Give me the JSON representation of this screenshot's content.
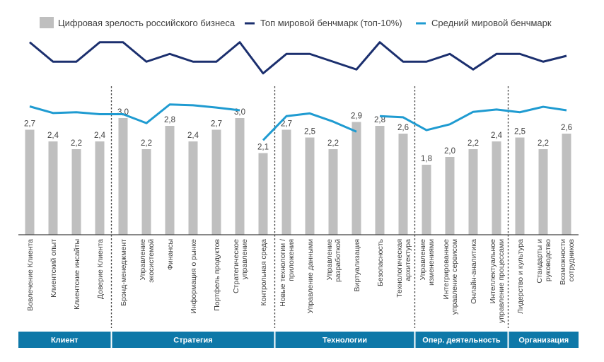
{
  "chart_data": {
    "type": "bar",
    "title": "",
    "xlabel": "",
    "ylabel": "",
    "ylim": [
      0,
      6
    ],
    "grid": false,
    "legend": {
      "placement": "top",
      "entries": [
        {
          "name": "Цифровая зрелость российского бизнеса",
          "kind": "bar",
          "color": "#bfbfbf"
        },
        {
          "name": "Топ мировой бенчмарк (топ-10%)",
          "kind": "line",
          "color": "#1b2f6e"
        },
        {
          "name": "Средний мировой бенчмарк",
          "kind": "line",
          "color": "#1f9bd1"
        }
      ]
    },
    "categories": [
      [
        "Вовлечение Клиента"
      ],
      [
        "Клиентский опыт"
      ],
      [
        "Клиентские инсайты"
      ],
      [
        "Доверие Клиента"
      ],
      [
        "Брэнд-менеджмент"
      ],
      [
        "Управление",
        "экосистемой"
      ],
      [
        "Финансы"
      ],
      [
        "Информация о рынке"
      ],
      [
        "Портфель продуктов"
      ],
      [
        "Стратегическое",
        "управление"
      ],
      [
        "Контрольная среда"
      ],
      [
        "Новые технологии /",
        "приложения"
      ],
      [
        "Управление данными"
      ],
      [
        "Управление",
        "разработкой"
      ],
      [
        "Виртуализация"
      ],
      [
        "Безопасность"
      ],
      [
        "Технологическая",
        "архитектура"
      ],
      [
        "Управление",
        "изменениями"
      ],
      [
        "Интегрированное",
        "управление сервисом"
      ],
      [
        "Онлайн-аналитика"
      ],
      [
        "Интеллектуальное",
        "управление процессами"
      ],
      [
        "Лидерство и культура"
      ],
      [
        "Стандарты и",
        "руководство"
      ],
      [
        "Возможности",
        "сотрудников"
      ]
    ],
    "series": [
      {
        "name": "Цифровая зрелость российского бизнеса",
        "type": "bar",
        "color": "#bfbfbf",
        "values": [
          2.7,
          2.4,
          2.2,
          2.4,
          3.0,
          2.2,
          2.8,
          2.4,
          2.7,
          3.0,
          2.1,
          2.7,
          2.5,
          2.2,
          2.9,
          2.8,
          2.6,
          1.8,
          2.0,
          2.2,
          2.4,
          2.5,
          2.2,
          2.6
        ],
        "labels": [
          "2,7",
          "2,4",
          "2,2",
          "2,4",
          "3,0",
          "2,2",
          "2,8",
          "2,4",
          "2,7",
          "3,0",
          "2,1",
          "2,7",
          "2,5",
          "2,2",
          "2,9",
          "2,8",
          "2,6",
          "1,8",
          "2,0",
          "2,2",
          "2,4",
          "2,5",
          "2,2",
          "2,6"
        ]
      },
      {
        "name": "Топ мировой бенчмарк (топ-10%)",
        "type": "line",
        "color": "#1b2f6e",
        "values": [
          4.95,
          4.45,
          4.45,
          4.95,
          4.95,
          4.45,
          4.65,
          4.45,
          4.45,
          4.95,
          4.15,
          4.65,
          4.65,
          4.45,
          4.25,
          4.95,
          4.45,
          4.45,
          4.65,
          4.25,
          4.65,
          4.65,
          4.45,
          4.6
        ]
      },
      {
        "name": "Средний мировой бенчмарк",
        "type": "line",
        "color": "#1f9bd1",
        "values": [
          3.3,
          3.13,
          3.15,
          3.1,
          3.1,
          2.87,
          3.35,
          3.33,
          3.27,
          3.2,
          2.43,
          3.05,
          3.12,
          2.91,
          2.65,
          3.05,
          3.02,
          2.69,
          2.84,
          3.16,
          3.22,
          3.15,
          3.29,
          3.2
        ],
        "gaps_after": [
          3,
          9,
          14
        ]
      }
    ],
    "groups": [
      {
        "label": "Клиент",
        "start": 0,
        "end": 3,
        "color": "#0e78a8"
      },
      {
        "label": "Стратегия",
        "start": 4,
        "end": 10,
        "color": "#0e78a8"
      },
      {
        "label": "Технологии",
        "start": 11,
        "end": 16,
        "color": "#0e78a8"
      },
      {
        "label": "Опер. деятельность",
        "start": 17,
        "end": 20,
        "color": "#0e78a8"
      },
      {
        "label": "Организация",
        "start": 21,
        "end": 23,
        "color": "#0e78a8"
      }
    ]
  }
}
